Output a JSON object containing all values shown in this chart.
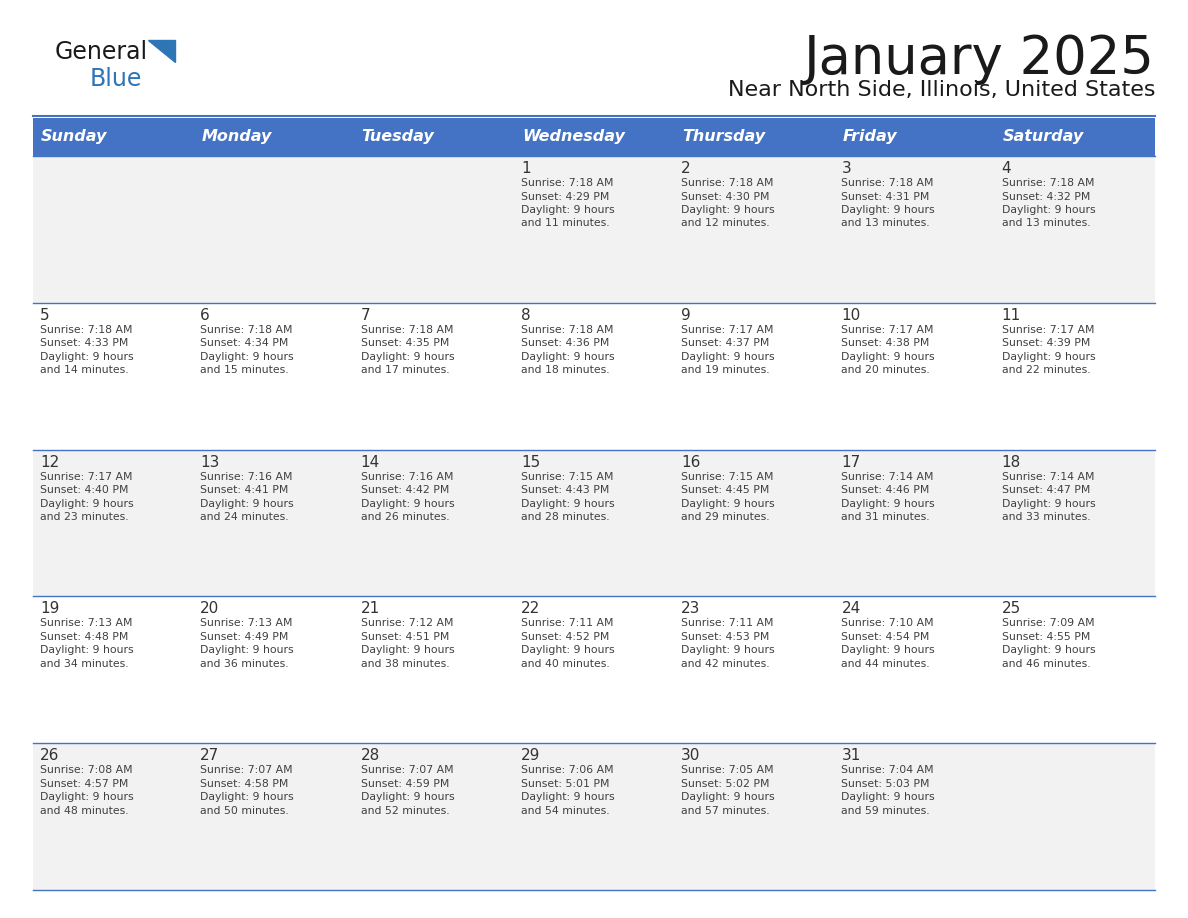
{
  "title": "January 2025",
  "subtitle": "Near North Side, Illinois, United States",
  "header_bg": "#4472C4",
  "header_text_color": "#FFFFFF",
  "cell_bg_gray": "#F2F2F2",
  "cell_bg_white": "#FFFFFF",
  "text_color": "#404040",
  "line_color": "#4472C4",
  "days_of_week": [
    "Sunday",
    "Monday",
    "Tuesday",
    "Wednesday",
    "Thursday",
    "Friday",
    "Saturday"
  ],
  "calendar_data": [
    [
      {
        "day": "",
        "sunrise": "",
        "sunset": "",
        "daylight": ""
      },
      {
        "day": "",
        "sunrise": "",
        "sunset": "",
        "daylight": ""
      },
      {
        "day": "",
        "sunrise": "",
        "sunset": "",
        "daylight": ""
      },
      {
        "day": "1",
        "sunrise": "7:18 AM",
        "sunset": "4:29 PM",
        "daylight": "9 hours and 11 minutes."
      },
      {
        "day": "2",
        "sunrise": "7:18 AM",
        "sunset": "4:30 PM",
        "daylight": "9 hours and 12 minutes."
      },
      {
        "day": "3",
        "sunrise": "7:18 AM",
        "sunset": "4:31 PM",
        "daylight": "9 hours and 13 minutes."
      },
      {
        "day": "4",
        "sunrise": "7:18 AM",
        "sunset": "4:32 PM",
        "daylight": "9 hours and 13 minutes."
      }
    ],
    [
      {
        "day": "5",
        "sunrise": "7:18 AM",
        "sunset": "4:33 PM",
        "daylight": "9 hours and 14 minutes."
      },
      {
        "day": "6",
        "sunrise": "7:18 AM",
        "sunset": "4:34 PM",
        "daylight": "9 hours and 15 minutes."
      },
      {
        "day": "7",
        "sunrise": "7:18 AM",
        "sunset": "4:35 PM",
        "daylight": "9 hours and 17 minutes."
      },
      {
        "day": "8",
        "sunrise": "7:18 AM",
        "sunset": "4:36 PM",
        "daylight": "9 hours and 18 minutes."
      },
      {
        "day": "9",
        "sunrise": "7:17 AM",
        "sunset": "4:37 PM",
        "daylight": "9 hours and 19 minutes."
      },
      {
        "day": "10",
        "sunrise": "7:17 AM",
        "sunset": "4:38 PM",
        "daylight": "9 hours and 20 minutes."
      },
      {
        "day": "11",
        "sunrise": "7:17 AM",
        "sunset": "4:39 PM",
        "daylight": "9 hours and 22 minutes."
      }
    ],
    [
      {
        "day": "12",
        "sunrise": "7:17 AM",
        "sunset": "4:40 PM",
        "daylight": "9 hours and 23 minutes."
      },
      {
        "day": "13",
        "sunrise": "7:16 AM",
        "sunset": "4:41 PM",
        "daylight": "9 hours and 24 minutes."
      },
      {
        "day": "14",
        "sunrise": "7:16 AM",
        "sunset": "4:42 PM",
        "daylight": "9 hours and 26 minutes."
      },
      {
        "day": "15",
        "sunrise": "7:15 AM",
        "sunset": "4:43 PM",
        "daylight": "9 hours and 28 minutes."
      },
      {
        "day": "16",
        "sunrise": "7:15 AM",
        "sunset": "4:45 PM",
        "daylight": "9 hours and 29 minutes."
      },
      {
        "day": "17",
        "sunrise": "7:14 AM",
        "sunset": "4:46 PM",
        "daylight": "9 hours and 31 minutes."
      },
      {
        "day": "18",
        "sunrise": "7:14 AM",
        "sunset": "4:47 PM",
        "daylight": "9 hours and 33 minutes."
      }
    ],
    [
      {
        "day": "19",
        "sunrise": "7:13 AM",
        "sunset": "4:48 PM",
        "daylight": "9 hours and 34 minutes."
      },
      {
        "day": "20",
        "sunrise": "7:13 AM",
        "sunset": "4:49 PM",
        "daylight": "9 hours and 36 minutes."
      },
      {
        "day": "21",
        "sunrise": "7:12 AM",
        "sunset": "4:51 PM",
        "daylight": "9 hours and 38 minutes."
      },
      {
        "day": "22",
        "sunrise": "7:11 AM",
        "sunset": "4:52 PM",
        "daylight": "9 hours and 40 minutes."
      },
      {
        "day": "23",
        "sunrise": "7:11 AM",
        "sunset": "4:53 PM",
        "daylight": "9 hours and 42 minutes."
      },
      {
        "day": "24",
        "sunrise": "7:10 AM",
        "sunset": "4:54 PM",
        "daylight": "9 hours and 44 minutes."
      },
      {
        "day": "25",
        "sunrise": "7:09 AM",
        "sunset": "4:55 PM",
        "daylight": "9 hours and 46 minutes."
      }
    ],
    [
      {
        "day": "26",
        "sunrise": "7:08 AM",
        "sunset": "4:57 PM",
        "daylight": "9 hours and 48 minutes."
      },
      {
        "day": "27",
        "sunrise": "7:07 AM",
        "sunset": "4:58 PM",
        "daylight": "9 hours and 50 minutes."
      },
      {
        "day": "28",
        "sunrise": "7:07 AM",
        "sunset": "4:59 PM",
        "daylight": "9 hours and 52 minutes."
      },
      {
        "day": "29",
        "sunrise": "7:06 AM",
        "sunset": "5:01 PM",
        "daylight": "9 hours and 54 minutes."
      },
      {
        "day": "30",
        "sunrise": "7:05 AM",
        "sunset": "5:02 PM",
        "daylight": "9 hours and 57 minutes."
      },
      {
        "day": "31",
        "sunrise": "7:04 AM",
        "sunset": "5:03 PM",
        "daylight": "9 hours and 59 minutes."
      },
      {
        "day": "",
        "sunrise": "",
        "sunset": "",
        "daylight": ""
      }
    ]
  ]
}
